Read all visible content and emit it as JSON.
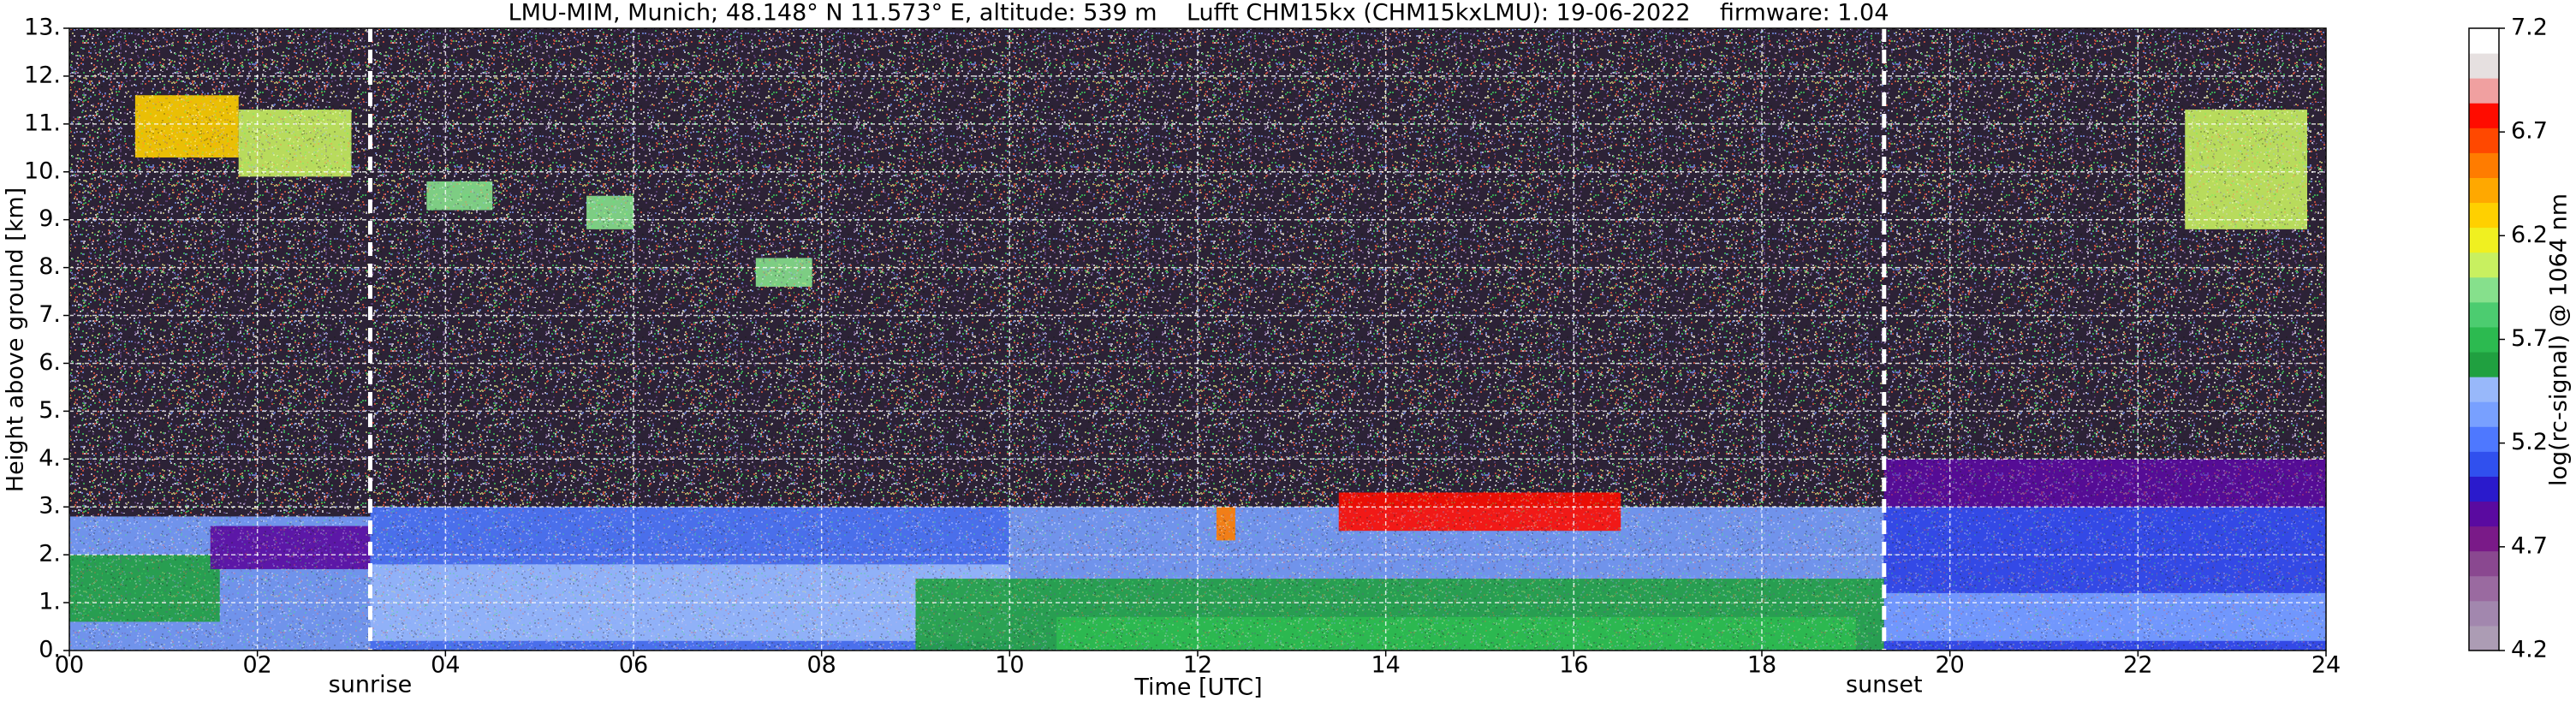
{
  "chart_data": {
    "type": "heatmap",
    "title": "LMU-MIM, Munich; 48.148° N 11.573° E, altitude: 539 m    Lufft CHM15kx (CHM15kxLMU): 19-06-2022    firmware: 1.04",
    "x_label": "Time [UTC]",
    "y_label": "Height above ground [km]",
    "xlim": [
      0,
      24
    ],
    "xticks": [
      {
        "value": 0,
        "label": "00"
      },
      {
        "value": 2,
        "label": "02"
      },
      {
        "value": 4,
        "label": "04"
      },
      {
        "value": 6,
        "label": "06"
      },
      {
        "value": 8,
        "label": "08"
      },
      10,
      12,
      14,
      16,
      18,
      20,
      22,
      24
    ],
    "ylim": [
      0,
      13
    ],
    "yticks": [
      {
        "value": 0,
        "label": "0."
      },
      {
        "value": 1,
        "label": "1."
      },
      {
        "value": 2,
        "label": "2."
      },
      {
        "value": 3,
        "label": "3."
      },
      {
        "value": 4,
        "label": "4."
      },
      {
        "value": 5,
        "label": "5."
      },
      {
        "value": 6,
        "label": "6."
      },
      {
        "value": 7,
        "label": "7."
      },
      {
        "value": 8,
        "label": "8."
      },
      {
        "value": 9,
        "label": "9."
      },
      {
        "value": 10,
        "label": "10."
      },
      {
        "value": 11,
        "label": "11."
      },
      {
        "value": 12,
        "label": "12."
      },
      {
        "value": 13,
        "label": "13."
      }
    ],
    "grid": true,
    "annotations": [
      {
        "text": "sunrise",
        "x": 3.2
      },
      {
        "text": "sunset",
        "x": 19.3
      }
    ],
    "layers": [
      {
        "x": [
          0,
          3.2
        ],
        "y": [
          0,
          2.8
        ],
        "value": 5.3
      },
      {
        "x": [
          0,
          1.6
        ],
        "y": [
          0.6,
          2.0
        ],
        "value": 5.55
      },
      {
        "x": [
          1.5,
          3.2
        ],
        "y": [
          1.7,
          2.6
        ],
        "value": 4.85
      },
      {
        "x": [
          3.2,
          10
        ],
        "y": [
          0,
          3.0
        ],
        "value": 5.25
      },
      {
        "x": [
          3.2,
          10
        ],
        "y": [
          0.2,
          1.8
        ],
        "value": 5.45
      },
      {
        "x": [
          10,
          19.3
        ],
        "y": [
          0,
          3.0
        ],
        "value": 5.3
      },
      {
        "x": [
          9,
          19.3
        ],
        "y": [
          0,
          1.5
        ],
        "value": 5.55
      },
      {
        "x": [
          10.5,
          19
        ],
        "y": [
          0,
          0.7
        ],
        "value": 5.65
      },
      {
        "x": [
          19.3,
          24
        ],
        "y": [
          0,
          4.0
        ],
        "value": 4.85
      },
      {
        "x": [
          19.3,
          24
        ],
        "y": [
          0,
          3.0
        ],
        "value": 5.1
      },
      {
        "x": [
          19.3,
          24
        ],
        "y": [
          0.2,
          1.2
        ],
        "value": 5.35
      },
      {
        "x": [
          0.7,
          1.8
        ],
        "y": [
          10.3,
          11.6
        ],
        "value": 6.3
      },
      {
        "x": [
          1.8,
          3.0
        ],
        "y": [
          9.9,
          11.3
        ],
        "value": 6.0
      },
      {
        "x": [
          3.8,
          4.5
        ],
        "y": [
          9.2,
          9.8
        ],
        "value": 5.9
      },
      {
        "x": [
          5.5,
          6.0
        ],
        "y": [
          8.8,
          9.5
        ],
        "value": 5.9
      },
      {
        "x": [
          7.3,
          7.9
        ],
        "y": [
          7.6,
          8.2
        ],
        "value": 5.9
      },
      {
        "x": [
          12.2,
          12.4
        ],
        "y": [
          2.3,
          3.0
        ],
        "value": 6.6
      },
      {
        "x": [
          13.5,
          16.5
        ],
        "y": [
          2.5,
          3.3
        ],
        "value": 6.8
      },
      {
        "x": [
          22.5,
          23.8
        ],
        "y": [
          8.8,
          11.3
        ],
        "value": 6.1
      }
    ],
    "colorbar": {
      "label": "log(rc-signal) @ 1064 nm",
      "lim": [
        4.2,
        7.2
      ],
      "ticks": [
        4.2,
        4.7,
        5.2,
        5.7,
        6.2,
        6.7,
        7.2
      ],
      "colors": [
        "#ac9cb4",
        "#a287ae",
        "#9a6aa0",
        "#8a4890",
        "#7a1a88",
        "#5a0aa0",
        "#2a1acc",
        "#3050ee",
        "#4e78ff",
        "#78a0ff",
        "#98b8fa",
        "#20a040",
        "#2cba50",
        "#4ccc70",
        "#86e08c",
        "#c8f060",
        "#f0f020",
        "#ffd000",
        "#ffa800",
        "#ff7c00",
        "#ff4800",
        "#ff0c00",
        "#f0a0a0",
        "#e6e0e0",
        "#ffffff"
      ]
    }
  }
}
